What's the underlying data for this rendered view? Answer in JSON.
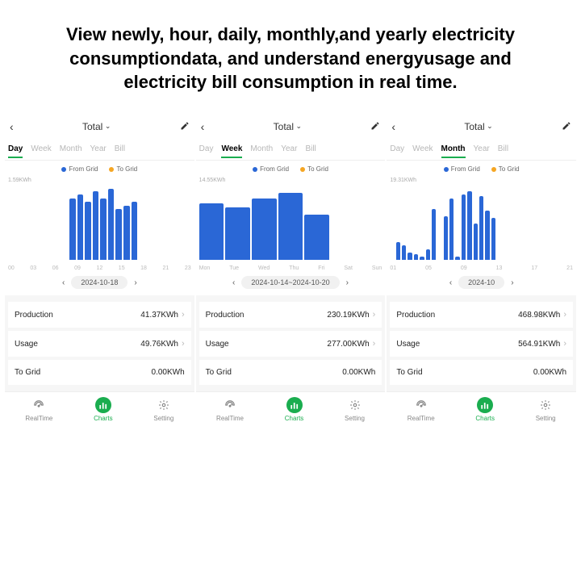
{
  "headline": "View newly, hour, daily, monthly,and yearly electricity consumptiondata, and understand energyusage and electricity bill consumption in real time.",
  "colors": {
    "from_grid": "#2a67d6",
    "to_grid": "#f5a623",
    "accent": "#1aad4f",
    "bg": "#ffffff"
  },
  "panels": [
    {
      "title": "Total",
      "tabs": [
        "Day",
        "Week",
        "Month",
        "Year",
        "Bill"
      ],
      "active_tab": "Day",
      "legend": [
        {
          "label": "From Grid",
          "color": "#2a67d6"
        },
        {
          "label": "To Grid",
          "color": "#f5a623"
        }
      ],
      "y_label": "1.59KWh",
      "x_labels": [
        "00",
        "03",
        "06",
        "09",
        "12",
        "15",
        "18",
        "21",
        "23"
      ],
      "bars": [
        0,
        0,
        0,
        0,
        0,
        0,
        0,
        0,
        85,
        90,
        80,
        95,
        85,
        98,
        70,
        75,
        80,
        0,
        0,
        0,
        0,
        0,
        0,
        0
      ],
      "date": "2024-10-18",
      "stats": [
        {
          "label": "Production",
          "value": "41.37KWh",
          "chev": true
        },
        {
          "label": "Usage",
          "value": "49.76KWh",
          "chev": true
        },
        {
          "label": "To Grid",
          "value": "0.00KWh",
          "chev": false
        }
      ]
    },
    {
      "title": "Total",
      "tabs": [
        "Day",
        "Week",
        "Month",
        "Year",
        "Bill"
      ],
      "active_tab": "Week",
      "legend": [
        {
          "label": "From Grid",
          "color": "#2a67d6"
        },
        {
          "label": "To Grid",
          "color": "#f5a623"
        }
      ],
      "y_label": "14.55KWh",
      "x_labels": [
        "Mon",
        "Tue",
        "Wed",
        "Thu",
        "Fri",
        "Sat",
        "Sun"
      ],
      "bars": [
        78,
        72,
        85,
        92,
        62,
        0,
        0
      ],
      "date": "2024-10-14~2024-10-20",
      "stats": [
        {
          "label": "Production",
          "value": "230.19KWh",
          "chev": true
        },
        {
          "label": "Usage",
          "value": "277.00KWh",
          "chev": true
        },
        {
          "label": "To Grid",
          "value": "0.00KWh",
          "chev": false
        }
      ]
    },
    {
      "title": "Total",
      "tabs": [
        "Day",
        "Week",
        "Month",
        "Year",
        "Bill"
      ],
      "active_tab": "Month",
      "legend": [
        {
          "label": "From Grid",
          "color": "#2a67d6"
        },
        {
          "label": "To Grid",
          "color": "#f5a623"
        }
      ],
      "y_label": "19.31KWh",
      "x_labels": [
        "01",
        "05",
        "09",
        "13",
        "17",
        "21"
      ],
      "bars": [
        0,
        25,
        20,
        10,
        8,
        5,
        15,
        70,
        0,
        60,
        85,
        5,
        90,
        95,
        50,
        88,
        68,
        58,
        0,
        0,
        0,
        0,
        0,
        0,
        0,
        0,
        0,
        0,
        0,
        0,
        0
      ],
      "date": "2024-10",
      "stats": [
        {
          "label": "Production",
          "value": "468.98KWh",
          "chev": true
        },
        {
          "label": "Usage",
          "value": "564.91KWh",
          "chev": true
        },
        {
          "label": "To Grid",
          "value": "0.00KWh",
          "chev": false
        }
      ]
    }
  ],
  "bottomnav": [
    {
      "label": "RealTime",
      "icon": "gauge",
      "active": false
    },
    {
      "label": "Charts",
      "icon": "bars",
      "active": true
    },
    {
      "label": "Setting",
      "icon": "gear",
      "active": false
    }
  ]
}
